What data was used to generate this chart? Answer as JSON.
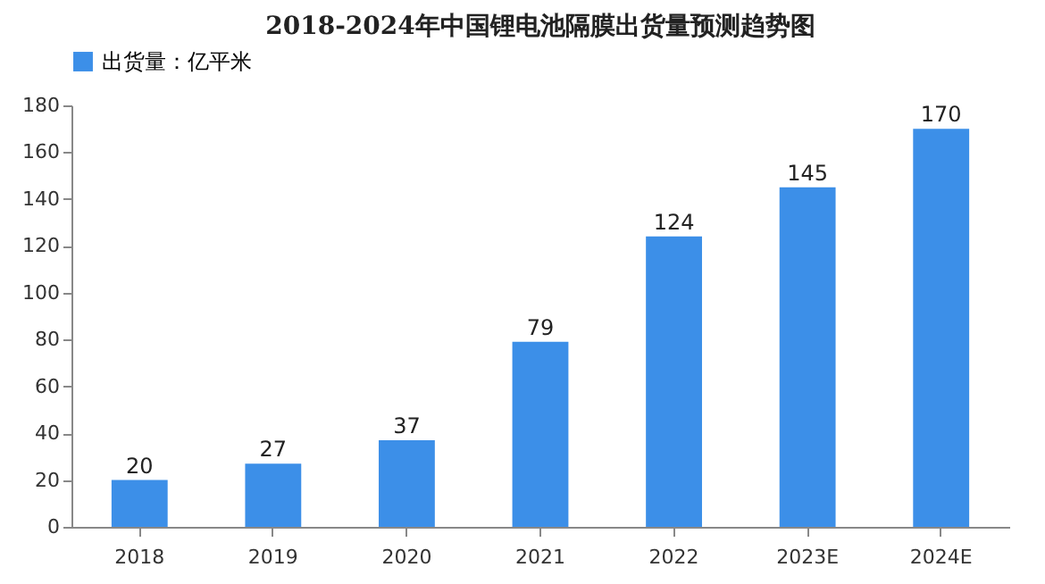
{
  "chart_data": {
    "type": "bar",
    "title": "2018-2024年中国锂电池隔膜出货量预测趋势图",
    "categories": [
      "2018",
      "2019",
      "2020",
      "2021",
      "2022",
      "2023E",
      "2024E"
    ],
    "series": [
      {
        "name": "出货量：亿平米",
        "color": "#3c8fe8",
        "values": [
          20,
          27,
          37,
          79,
          124,
          145,
          170
        ]
      }
    ],
    "ylim": [
      0,
      180
    ],
    "yticks": [
      0,
      20,
      40,
      60,
      80,
      100,
      120,
      140,
      160,
      180
    ],
    "grid": false,
    "legend": "top",
    "data_labels": true
  }
}
